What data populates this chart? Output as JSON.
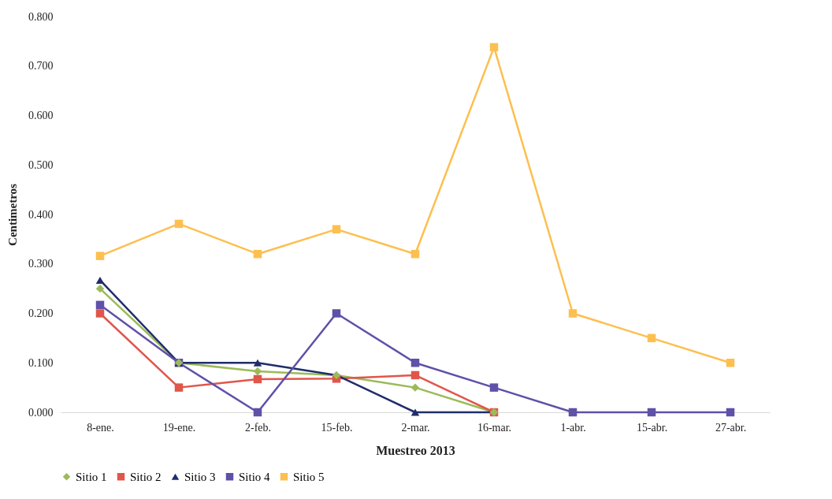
{
  "chart_data": {
    "type": "line",
    "xlabel": "Muestreo 2013",
    "ylabel": "Centimetros",
    "categories": [
      "8-ene.",
      "19-ene.",
      "2-feb.",
      "15-feb.",
      "2-mar.",
      "16-mar.",
      "1-abr.",
      "15-abr.",
      "27-abr."
    ],
    "ylim": [
      0,
      0.8
    ],
    "yticks": [
      {
        "value": 0,
        "label": "0.000"
      },
      {
        "value": 0.1,
        "label": "0.100"
      },
      {
        "value": 0.2,
        "label": "0.200"
      },
      {
        "value": 0.3,
        "label": "0.300"
      },
      {
        "value": 0.4,
        "label": "0.400"
      },
      {
        "value": 0.5,
        "label": "0.500"
      },
      {
        "value": 0.6,
        "label": "0.600"
      },
      {
        "value": 0.7,
        "label": "0.700"
      },
      {
        "value": 0.8,
        "label": "0.800"
      }
    ],
    "grid": false,
    "legend": "bottom",
    "series": [
      {
        "name": "Sitio 1",
        "color": "#9bbb59",
        "marker": "diamond",
        "values": [
          0.25,
          0.1,
          0.083,
          0.075,
          0.05,
          0,
          null,
          null,
          null
        ]
      },
      {
        "name": "Sitio 2",
        "color": "#e0564b",
        "marker": "square",
        "values": [
          0.2,
          0.05,
          0.067,
          0.068,
          0.075,
          0,
          null,
          null,
          null
        ]
      },
      {
        "name": "Sitio 3",
        "color": "#1f2d6b",
        "marker": "triangle",
        "values": [
          0.267,
          0.1,
          0.1,
          0.075,
          0,
          0,
          null,
          null,
          null
        ]
      },
      {
        "name": "Sitio 4",
        "color": "#6050a8",
        "marker": "square",
        "values": [
          0.217,
          0.1,
          0,
          0.2,
          0.1,
          0.05,
          0,
          0,
          0
        ]
      },
      {
        "name": "Sitio 5",
        "color": "#fdbf4f",
        "marker": "square",
        "values": [
          0.316,
          0.381,
          0.32,
          0.37,
          0.32,
          0.738,
          0.2,
          0.15,
          0.1
        ]
      }
    ]
  }
}
